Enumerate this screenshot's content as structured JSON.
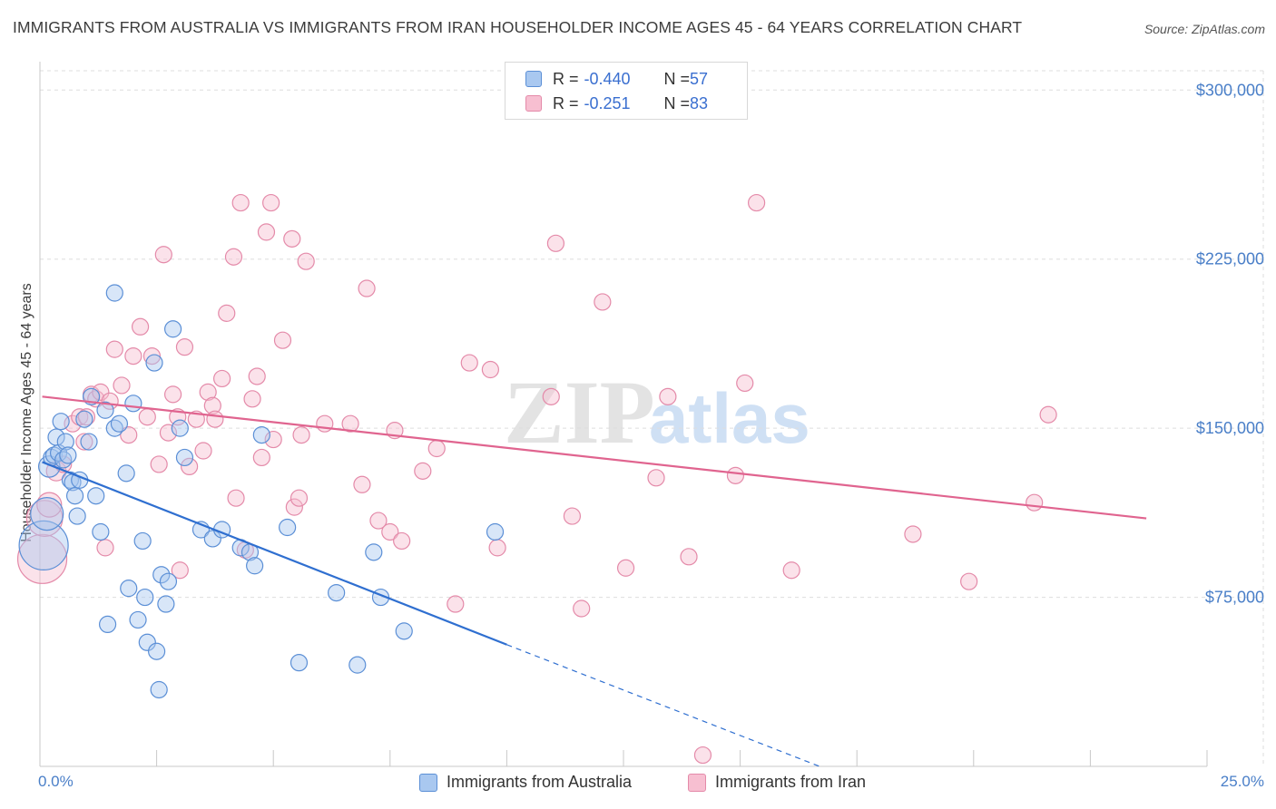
{
  "title": "IMMIGRANTS FROM AUSTRALIA VS IMMIGRANTS FROM IRAN HOUSEHOLDER INCOME AGES 45 - 64 YEARS CORRELATION CHART",
  "source": "Source: ZipAtlas.com",
  "watermark": {
    "zip": "ZIP",
    "atlas": "atlas"
  },
  "legend": [
    {
      "r_label": "R = ",
      "r_value": "-0.440",
      "n_label": "N = ",
      "n_value": "57"
    },
    {
      "r_label": "R = ",
      "r_value": "-0.251",
      "n_label": "N = ",
      "n_value": "83"
    }
  ],
  "colors": {
    "australia_fill": "#a9c8f0",
    "australia_stroke": "#5b8fd6",
    "australia_line": "#2f6fd0",
    "iran_fill": "#f7bfd1",
    "iran_stroke": "#e48aa9",
    "iran_line": "#e0648f",
    "grid": "#dddddd",
    "tick_label": "#4a7fc8"
  },
  "chart_data": {
    "type": "scatter",
    "title": "IMMIGRANTS FROM AUSTRALIA VS IMMIGRANTS FROM IRAN HOUSEHOLDER INCOME AGES 45 - 64 YEARS CORRELATION CHART",
    "xlabel": "",
    "ylabel": "Householder Income Ages 45 - 64 years",
    "xlim": [
      0,
      25
    ],
    "ylim": [
      0,
      315000
    ],
    "x_tick_labels": [
      "0.0%",
      "25.0%"
    ],
    "y_ticks": [
      75000,
      150000,
      225000,
      300000
    ],
    "y_tick_labels": [
      "$75,000",
      "$150,000",
      "$225,000",
      "$300,000"
    ],
    "grid": true,
    "legend_position": "bottom-center",
    "series": [
      {
        "name": "Immigrants from Australia",
        "r": -0.44,
        "n": 57,
        "trend": {
          "x0": 0.05,
          "y0": 135000,
          "x1": 10.0,
          "y1": 54000,
          "dashed_to_x": 16.7,
          "dashed_to_y": 0
        },
        "points": [
          [
            0.08,
            98000,
            3
          ],
          [
            0.15,
            112000,
            2
          ],
          [
            0.2,
            133000,
            1.3
          ],
          [
            0.25,
            137000,
            1
          ],
          [
            0.3,
            138000,
            1
          ],
          [
            0.35,
            146000,
            1
          ],
          [
            0.4,
            139000,
            1
          ],
          [
            0.45,
            153000,
            1
          ],
          [
            0.5,
            136000,
            1
          ],
          [
            0.55,
            144000,
            1
          ],
          [
            0.6,
            138000,
            1
          ],
          [
            0.65,
            127000,
            1
          ],
          [
            0.7,
            126000,
            1
          ],
          [
            0.75,
            120000,
            1
          ],
          [
            0.8,
            111000,
            1
          ],
          [
            0.85,
            127000,
            1
          ],
          [
            0.95,
            154000,
            1
          ],
          [
            1.05,
            144000,
            1
          ],
          [
            1.1,
            164000,
            1
          ],
          [
            1.2,
            120000,
            1
          ],
          [
            1.3,
            104000,
            1
          ],
          [
            1.4,
            158000,
            1
          ],
          [
            1.45,
            63000,
            1
          ],
          [
            1.6,
            150000,
            1
          ],
          [
            1.7,
            152000,
            1
          ],
          [
            1.85,
            130000,
            1
          ],
          [
            1.9,
            79000,
            1
          ],
          [
            2.0,
            161000,
            1
          ],
          [
            2.1,
            65000,
            1
          ],
          [
            2.2,
            100000,
            1
          ],
          [
            2.25,
            75000,
            1
          ],
          [
            2.3,
            55000,
            1
          ],
          [
            2.5,
            51000,
            1
          ],
          [
            2.55,
            34000,
            1
          ],
          [
            2.6,
            85000,
            1
          ],
          [
            2.7,
            72000,
            1
          ],
          [
            2.75,
            82000,
            1
          ],
          [
            2.85,
            194000,
            1
          ],
          [
            3.0,
            150000,
            1
          ],
          [
            3.1,
            137000,
            1
          ],
          [
            3.45,
            105000,
            1
          ],
          [
            3.7,
            101000,
            1
          ],
          [
            3.9,
            105000,
            1
          ],
          [
            4.3,
            97000,
            1
          ],
          [
            4.5,
            95000,
            1
          ],
          [
            4.6,
            89000,
            1
          ],
          [
            4.75,
            147000,
            1
          ],
          [
            5.3,
            106000,
            1
          ],
          [
            5.55,
            46000,
            1
          ],
          [
            6.35,
            77000,
            1
          ],
          [
            6.8,
            45000,
            1
          ],
          [
            7.15,
            95000,
            1
          ],
          [
            7.3,
            75000,
            1
          ],
          [
            7.8,
            60000,
            1
          ],
          [
            9.75,
            104000,
            1
          ],
          [
            1.6,
            210000,
            1
          ],
          [
            2.45,
            179000,
            1
          ]
        ]
      },
      {
        "name": "Immigrants from Iran",
        "r": -0.251,
        "n": 83,
        "trend": {
          "x0": 0.05,
          "y0": 164000,
          "x1": 23.7,
          "y1": 110000
        },
        "points": [
          [
            0.05,
            92000,
            3
          ],
          [
            0.1,
            110000,
            2.2
          ],
          [
            0.2,
            116000,
            1.5
          ],
          [
            0.35,
            131000,
            1.2
          ],
          [
            0.5,
            134000,
            1
          ],
          [
            0.7,
            152000,
            1
          ],
          [
            0.85,
            155000,
            1
          ],
          [
            0.95,
            144000,
            1
          ],
          [
            1.0,
            155000,
            1
          ],
          [
            1.1,
            165000,
            1
          ],
          [
            1.2,
            163000,
            1
          ],
          [
            1.3,
            166000,
            1
          ],
          [
            1.4,
            97000,
            1
          ],
          [
            1.5,
            162000,
            1
          ],
          [
            1.6,
            185000,
            1
          ],
          [
            1.75,
            169000,
            1
          ],
          [
            1.9,
            147000,
            1
          ],
          [
            2.0,
            182000,
            1
          ],
          [
            2.15,
            195000,
            1
          ],
          [
            2.3,
            155000,
            1
          ],
          [
            2.4,
            182000,
            1
          ],
          [
            2.55,
            134000,
            1
          ],
          [
            2.65,
            227000,
            1
          ],
          [
            2.75,
            148000,
            1
          ],
          [
            2.85,
            165000,
            1
          ],
          [
            2.95,
            155000,
            1
          ],
          [
            3.0,
            87000,
            1
          ],
          [
            3.1,
            186000,
            1
          ],
          [
            3.2,
            133000,
            1
          ],
          [
            3.35,
            154000,
            1
          ],
          [
            3.5,
            140000,
            1
          ],
          [
            3.6,
            166000,
            1
          ],
          [
            3.7,
            160000,
            1
          ],
          [
            3.75,
            154000,
            1
          ],
          [
            3.9,
            172000,
            1
          ],
          [
            4.0,
            201000,
            1
          ],
          [
            4.15,
            226000,
            1
          ],
          [
            4.2,
            119000,
            1
          ],
          [
            4.3,
            250000,
            1
          ],
          [
            4.4,
            96000,
            1
          ],
          [
            4.55,
            163000,
            1
          ],
          [
            4.65,
            173000,
            1
          ],
          [
            4.75,
            137000,
            1
          ],
          [
            4.85,
            237000,
            1
          ],
          [
            4.95,
            250000,
            1
          ],
          [
            5.0,
            145000,
            1
          ],
          [
            5.2,
            189000,
            1
          ],
          [
            5.4,
            234000,
            1
          ],
          [
            5.45,
            115000,
            1
          ],
          [
            5.55,
            119000,
            1
          ],
          [
            5.6,
            147000,
            1
          ],
          [
            5.7,
            224000,
            1
          ],
          [
            6.1,
            152000,
            1
          ],
          [
            6.65,
            152000,
            1
          ],
          [
            6.9,
            125000,
            1
          ],
          [
            7.0,
            212000,
            1
          ],
          [
            7.25,
            109000,
            1
          ],
          [
            7.5,
            104000,
            1
          ],
          [
            7.6,
            149000,
            1
          ],
          [
            7.75,
            100000,
            1
          ],
          [
            8.2,
            131000,
            1
          ],
          [
            8.5,
            141000,
            1
          ],
          [
            8.9,
            72000,
            1
          ],
          [
            9.2,
            179000,
            1
          ],
          [
            9.65,
            176000,
            1
          ],
          [
            9.8,
            97000,
            1
          ],
          [
            10.95,
            164000,
            1
          ],
          [
            11.05,
            232000,
            1
          ],
          [
            11.4,
            111000,
            1
          ],
          [
            11.6,
            70000,
            1
          ],
          [
            12.05,
            206000,
            1
          ],
          [
            12.55,
            88000,
            1
          ],
          [
            13.2,
            128000,
            1
          ],
          [
            13.45,
            164000,
            1
          ],
          [
            13.9,
            93000,
            1
          ],
          [
            14.2,
            5000,
            1
          ],
          [
            14.9,
            129000,
            1
          ],
          [
            15.1,
            170000,
            1
          ],
          [
            15.35,
            250000,
            1
          ],
          [
            16.1,
            87000,
            1
          ],
          [
            18.7,
            103000,
            1
          ],
          [
            19.9,
            82000,
            1
          ],
          [
            21.3,
            117000,
            1
          ],
          [
            21.6,
            156000,
            1
          ]
        ]
      }
    ]
  },
  "bottom_legend": [
    "Immigrants from Australia",
    "Immigrants from Iran"
  ]
}
